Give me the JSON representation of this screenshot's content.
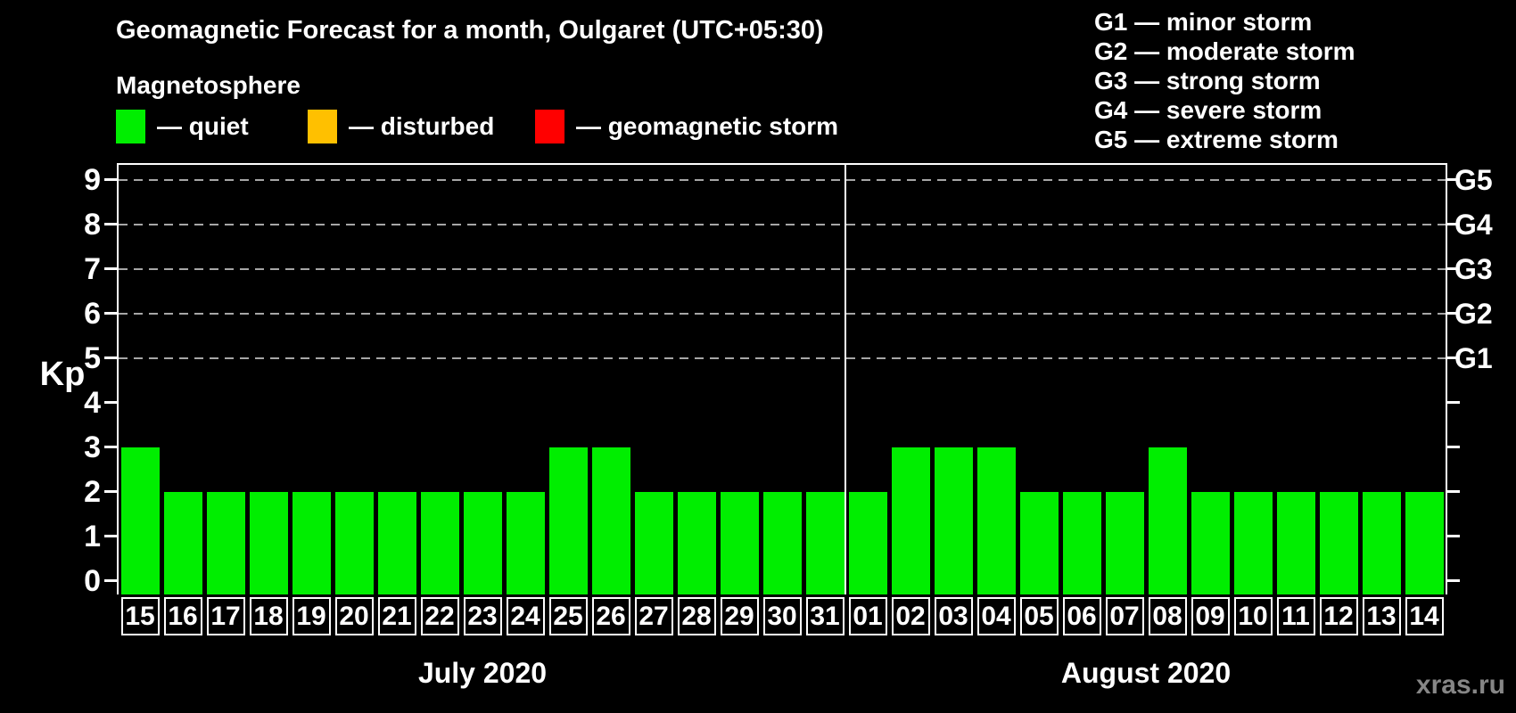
{
  "title": "Geomagnetic Forecast for a month, Oulgaret (UTC+05:30)",
  "subtitle": "Magnetosphere",
  "legend": [
    {
      "name": "quiet",
      "label": "— quiet",
      "color": "#00ee00"
    },
    {
      "name": "disturbed",
      "label": "— disturbed",
      "color": "#ffc000"
    },
    {
      "name": "geomagnetic-storm",
      "label": "— geomagnetic storm",
      "color": "#ff0000"
    }
  ],
  "storm_scale_legend": [
    "G1 — minor storm",
    "G2 — moderate storm",
    "G3 — strong storm",
    "G4 — severe storm",
    "G5 — extreme storm"
  ],
  "watermark": "xras.ru",
  "chart_data": {
    "type": "bar",
    "title": "Geomagnetic Forecast for a month, Oulgaret (UTC+05:30)",
    "ylabel": "Kp",
    "ylim": [
      0,
      9
    ],
    "yticks": [
      0,
      1,
      2,
      3,
      4,
      5,
      6,
      7,
      8,
      9
    ],
    "dashed_gridlines_at_kp": [
      5,
      6,
      7,
      8,
      9
    ],
    "right_axis_labels": [
      {
        "kp": 5,
        "label": "G1"
      },
      {
        "kp": 6,
        "label": "G2"
      },
      {
        "kp": 7,
        "label": "G3"
      },
      {
        "kp": 8,
        "label": "G4"
      },
      {
        "kp": 9,
        "label": "G5"
      }
    ],
    "bar_color": "#00ee00",
    "legend_position": "top",
    "grid": "dashed-horizontal-kp5-to-9",
    "months": [
      {
        "label": "July 2020",
        "categories": [
          "15",
          "16",
          "17",
          "18",
          "19",
          "20",
          "21",
          "22",
          "23",
          "24",
          "25",
          "26",
          "27",
          "28",
          "29",
          "30",
          "31"
        ],
        "values": [
          3,
          2,
          2,
          2,
          2,
          2,
          2,
          2,
          2,
          2,
          3,
          3,
          2,
          2,
          2,
          2,
          2
        ]
      },
      {
        "label": "August 2020",
        "categories": [
          "01",
          "02",
          "03",
          "04",
          "05",
          "06",
          "07",
          "08",
          "09",
          "10",
          "11",
          "12",
          "13",
          "14"
        ],
        "values": [
          2,
          3,
          3,
          3,
          2,
          2,
          2,
          3,
          2,
          2,
          2,
          2,
          2,
          2
        ]
      }
    ]
  }
}
